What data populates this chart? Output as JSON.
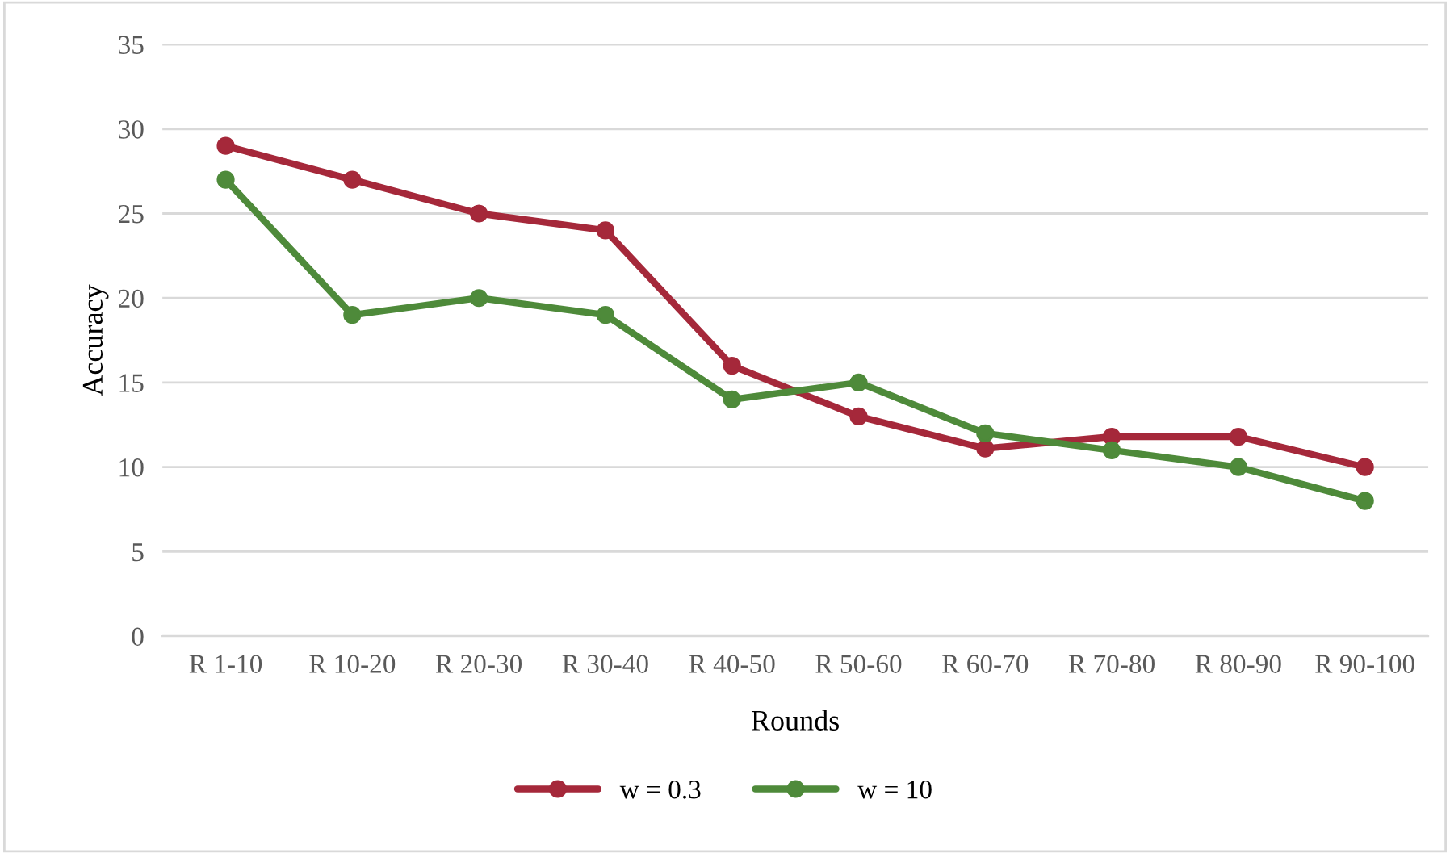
{
  "chart_data": {
    "type": "line",
    "xlabel": "Rounds",
    "ylabel": "Accuracy",
    "categories": [
      "R 1-10",
      "R 10-20",
      "R 20-30",
      "R 30-40",
      "R 40-50",
      "R 50-60",
      "R 60-70",
      "R 70-80",
      "R 80-90",
      "R 90-100"
    ],
    "series": [
      {
        "name": "w = 0.3",
        "color": "#a5283a",
        "values": [
          29,
          27,
          25,
          24,
          16,
          13,
          11.1,
          11.8,
          11.8,
          10
        ]
      },
      {
        "name": "w = 10",
        "color": "#4e8a3a",
        "values": [
          27,
          19,
          20,
          19,
          14,
          15,
          12,
          11,
          10,
          8
        ]
      }
    ],
    "ylim": [
      0,
      35
    ],
    "yticks": [
      0,
      5,
      10,
      15,
      20,
      25,
      30,
      35
    ],
    "grid": "y",
    "legend": "bottom",
    "marker": "circle",
    "line_style": "solid"
  }
}
